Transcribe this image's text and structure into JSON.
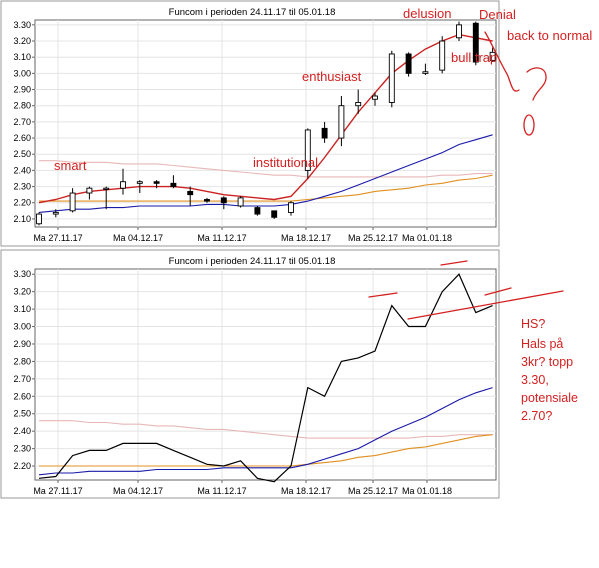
{
  "chart_data": [
    {
      "type": "candlestick",
      "title": "Funcom i perioden 24.11.17 til 05.01.18",
      "x_ticks": [
        "Ma 27.11.17",
        "Ma 04.12.17",
        "Ma 11.12.17",
        "Ma 18.12.17",
        "Ma 25.12.17",
        "Ma 01.01.18"
      ],
      "y_ticks": [
        "2.10",
        "2.20",
        "2.30",
        "2.40",
        "2.50",
        "2.60",
        "2.70",
        "2.80",
        "2.90",
        "3.00",
        "3.10",
        "3.20",
        "3.30"
      ],
      "ylim": [
        2.05,
        3.33
      ],
      "grid": true,
      "candles": [
        {
          "o": 2.07,
          "h": 2.14,
          "l": 2.06,
          "c": 2.13
        },
        {
          "o": 2.13,
          "h": 2.16,
          "l": 2.11,
          "c": 2.14
        },
        {
          "o": 2.15,
          "h": 2.29,
          "l": 2.14,
          "c": 2.26
        },
        {
          "o": 2.26,
          "h": 2.3,
          "l": 2.22,
          "c": 2.29
        },
        {
          "o": 2.29,
          "h": 2.3,
          "l": 2.16,
          "c": 2.29
        },
        {
          "o": 2.29,
          "h": 2.41,
          "l": 2.25,
          "c": 2.33
        },
        {
          "o": 2.32,
          "h": 2.34,
          "l": 2.26,
          "c": 2.33
        },
        {
          "o": 2.33,
          "h": 2.34,
          "l": 2.29,
          "c": 2.32
        },
        {
          "o": 2.32,
          "h": 2.37,
          "l": 2.29,
          "c": 2.3
        },
        {
          "o": 2.27,
          "h": 2.3,
          "l": 2.18,
          "c": 2.25
        },
        {
          "o": 2.22,
          "h": 2.23,
          "l": 2.2,
          "c": 2.21
        },
        {
          "o": 2.23,
          "h": 2.24,
          "l": 2.16,
          "c": 2.2
        },
        {
          "o": 2.18,
          "h": 2.24,
          "l": 2.17,
          "c": 2.23
        },
        {
          "o": 2.17,
          "h": 2.18,
          "l": 2.12,
          "c": 2.13
        },
        {
          "o": 2.15,
          "h": 2.15,
          "l": 2.1,
          "c": 2.11
        },
        {
          "o": 2.14,
          "h": 2.21,
          "l": 2.12,
          "c": 2.2
        },
        {
          "o": 2.4,
          "h": 2.66,
          "l": 2.35,
          "c": 2.65
        },
        {
          "o": 2.66,
          "h": 2.7,
          "l": 2.57,
          "c": 2.6
        },
        {
          "o": 2.6,
          "h": 2.86,
          "l": 2.55,
          "c": 2.8
        },
        {
          "o": 2.8,
          "h": 2.9,
          "l": 2.75,
          "c": 2.82
        },
        {
          "o": 2.84,
          "h": 2.88,
          "l": 2.8,
          "c": 2.86
        },
        {
          "o": 2.82,
          "h": 3.14,
          "l": 2.79,
          "c": 3.12
        },
        {
          "o": 3.12,
          "h": 3.13,
          "l": 2.98,
          "c": 3.0
        },
        {
          "o": 3.0,
          "h": 3.06,
          "l": 2.99,
          "c": 3.01
        },
        {
          "o": 3.02,
          "h": 3.23,
          "l": 3.0,
          "c": 3.2
        },
        {
          "o": 3.22,
          "h": 3.32,
          "l": 3.2,
          "c": 3.3
        },
        {
          "o": 3.31,
          "h": 3.32,
          "l": 3.05,
          "c": 3.07
        },
        {
          "o": 3.08,
          "h": 3.16,
          "l": 3.07,
          "c": 3.13
        }
      ],
      "ma_lines": [
        {
          "color": "#cc2222",
          "values": [
            2.2,
            2.22,
            2.25,
            2.27,
            2.28,
            2.29,
            2.3,
            2.3,
            2.3,
            2.29,
            2.27,
            2.25,
            2.24,
            2.23,
            2.22,
            2.24,
            2.35,
            2.48,
            2.62,
            2.76,
            2.88,
            3.0,
            3.08,
            3.15,
            3.2,
            3.24,
            3.22,
            3.2
          ]
        },
        {
          "color": "#1a1aa8",
          "values": [
            2.14,
            2.15,
            2.16,
            2.16,
            2.17,
            2.17,
            2.18,
            2.18,
            2.18,
            2.18,
            2.19,
            2.19,
            2.18,
            2.18,
            2.18,
            2.19,
            2.21,
            2.24,
            2.27,
            2.31,
            2.35,
            2.39,
            2.43,
            2.47,
            2.51,
            2.56,
            2.59,
            2.62
          ]
        },
        {
          "color": "#e09020",
          "values": [
            2.21,
            2.21,
            2.21,
            2.21,
            2.21,
            2.21,
            2.21,
            2.21,
            2.21,
            2.21,
            2.21,
            2.21,
            2.21,
            2.21,
            2.21,
            2.21,
            2.22,
            2.23,
            2.24,
            2.25,
            2.27,
            2.28,
            2.29,
            2.31,
            2.32,
            2.34,
            2.35,
            2.37
          ]
        },
        {
          "color": "#e8b8b8",
          "values": [
            2.46,
            2.46,
            2.45,
            2.45,
            2.45,
            2.44,
            2.44,
            2.44,
            2.43,
            2.42,
            2.41,
            2.4,
            2.39,
            2.38,
            2.37,
            2.37,
            2.36,
            2.36,
            2.36,
            2.36,
            2.36,
            2.36,
            2.36,
            2.36,
            2.37,
            2.37,
            2.38,
            2.38
          ]
        }
      ],
      "annotations": [
        "smart",
        "institutional",
        "enthusiast",
        "delusion",
        "Denial",
        "back to normal",
        "bull trap"
      ]
    },
    {
      "type": "line",
      "title": "Funcom i perioden 24.11.17 til 05.01.18",
      "x_ticks": [
        "Ma 27.11.17",
        "Ma 04.12.17",
        "Ma 11.12.17",
        "Ma 18.12.17",
        "Ma 25.12.17",
        "Ma 01.01.18"
      ],
      "y_ticks": [
        "2.20",
        "2.30",
        "2.40",
        "2.50",
        "2.60",
        "2.70",
        "2.80",
        "2.90",
        "3.00",
        "3.10",
        "3.20",
        "3.30"
      ],
      "ylim": [
        2.12,
        3.33
      ],
      "grid": true,
      "series": [
        {
          "color": "#000000",
          "values": [
            2.13,
            2.14,
            2.26,
            2.29,
            2.29,
            2.33,
            2.33,
            2.33,
            2.29,
            2.25,
            2.21,
            2.2,
            2.23,
            2.13,
            2.11,
            2.2,
            2.65,
            2.6,
            2.8,
            2.82,
            2.86,
            3.12,
            3.0,
            3.0,
            3.2,
            3.3,
            3.08,
            3.12
          ]
        },
        {
          "color": "#1a1aa8",
          "values": [
            2.15,
            2.16,
            2.16,
            2.17,
            2.17,
            2.17,
            2.17,
            2.18,
            2.18,
            2.18,
            2.18,
            2.19,
            2.19,
            2.19,
            2.19,
            2.19,
            2.21,
            2.24,
            2.27,
            2.3,
            2.35,
            2.4,
            2.44,
            2.48,
            2.53,
            2.58,
            2.62,
            2.65
          ]
        },
        {
          "color": "#e09020",
          "values": [
            2.2,
            2.2,
            2.2,
            2.2,
            2.2,
            2.2,
            2.2,
            2.2,
            2.2,
            2.2,
            2.2,
            2.2,
            2.2,
            2.2,
            2.2,
            2.2,
            2.21,
            2.22,
            2.23,
            2.25,
            2.26,
            2.28,
            2.3,
            2.31,
            2.33,
            2.35,
            2.37,
            2.38
          ]
        },
        {
          "color": "#e8b8b8",
          "values": [
            2.46,
            2.46,
            2.46,
            2.45,
            2.45,
            2.44,
            2.44,
            2.43,
            2.43,
            2.42,
            2.41,
            2.41,
            2.4,
            2.39,
            2.38,
            2.37,
            2.36,
            2.36,
            2.36,
            2.36,
            2.36,
            2.36,
            2.36,
            2.37,
            2.37,
            2.38,
            2.38,
            2.38
          ]
        }
      ],
      "annotations": [
        "HS?",
        "Hals på",
        "3kr? topp",
        "3.30,",
        "potensiale",
        "2.70?"
      ]
    }
  ],
  "annotation_color": "#d42020"
}
